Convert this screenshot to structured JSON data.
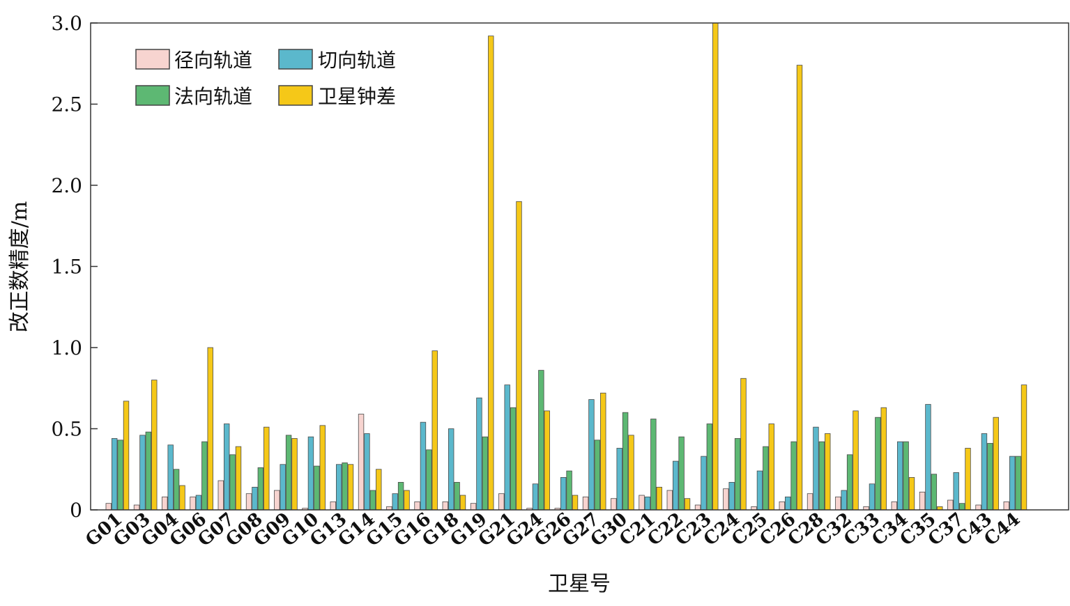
{
  "chart_data": {
    "type": "bar",
    "xlabel": "卫星号",
    "ylabel": "改正数精度/m",
    "ylim": [
      0,
      3.0
    ],
    "yticks": [
      "0",
      "0.5",
      "1.0",
      "1.5",
      "2.0",
      "2.5",
      "3.0"
    ],
    "legend_position": "top-left",
    "categories": [
      "G01",
      "G03",
      "G04",
      "G06",
      "G07",
      "G08",
      "G09",
      "G10",
      "G13",
      "G14",
      "G15",
      "G16",
      "G18",
      "G19",
      "G21",
      "G24",
      "G26",
      "G27",
      "G30",
      "C21",
      "C22",
      "C23",
      "C24",
      "C25",
      "C26",
      "C28",
      "C32",
      "C33",
      "C34",
      "C35",
      "C37",
      "C43",
      "C44"
    ],
    "series": [
      {
        "name": "径向轨道",
        "color": "#f7d4d0",
        "values": [
          0.04,
          0.03,
          0.08,
          0.08,
          0.18,
          0.1,
          0.12,
          0.01,
          0.05,
          0.59,
          0.02,
          0.05,
          0.05,
          0.04,
          0.1,
          0.01,
          0.01,
          0.08,
          0.07,
          0.09,
          0.12,
          0.03,
          0.13,
          0.02,
          0.05,
          0.1,
          0.08,
          0.02,
          0.05,
          0.11,
          0.06,
          0.03,
          0.05
        ]
      },
      {
        "name": "切向轨道",
        "color": "#5bb8cc",
        "values": [
          0.44,
          0.46,
          0.4,
          0.09,
          0.53,
          0.14,
          0.28,
          0.45,
          0.28,
          0.47,
          0.1,
          0.54,
          0.5,
          0.69,
          0.77,
          0.16,
          0.2,
          0.68,
          0.38,
          0.08,
          0.3,
          0.33,
          0.17,
          0.24,
          0.08,
          0.51,
          0.12,
          0.16,
          0.42,
          0.65,
          0.23,
          0.47,
          0.33
        ]
      },
      {
        "name": "法向轨道",
        "color": "#5db873",
        "values": [
          0.43,
          0.48,
          0.25,
          0.42,
          0.34,
          0.26,
          0.46,
          0.27,
          0.29,
          0.12,
          0.17,
          0.37,
          0.17,
          0.45,
          0.63,
          0.86,
          0.24,
          0.43,
          0.6,
          0.56,
          0.45,
          0.53,
          0.44,
          0.39,
          0.42,
          0.42,
          0.34,
          0.57,
          0.42,
          0.22,
          0.04,
          0.41,
          0.33
        ]
      },
      {
        "name": "卫星钟差",
        "color": "#f5c818",
        "values": [
          0.67,
          0.8,
          0.15,
          1.0,
          0.39,
          0.51,
          0.44,
          0.52,
          0.28,
          0.25,
          0.12,
          0.98,
          0.09,
          2.92,
          1.9,
          0.61,
          0.09,
          0.72,
          0.46,
          0.14,
          0.07,
          3.0,
          0.81,
          0.53,
          2.74,
          0.47,
          0.61,
          0.63,
          0.2,
          0.02,
          0.38,
          0.57,
          0.77
        ]
      }
    ]
  }
}
